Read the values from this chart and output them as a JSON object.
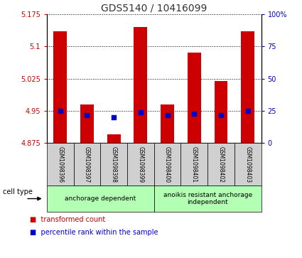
{
  "title": "GDS5140 / 10416099",
  "samples": [
    "GSM1098396",
    "GSM1098397",
    "GSM1098398",
    "GSM1098399",
    "GSM1098400",
    "GSM1098401",
    "GSM1098402",
    "GSM1098403"
  ],
  "transformed_counts": [
    5.135,
    4.965,
    4.895,
    5.145,
    4.965,
    5.085,
    5.02,
    5.135
  ],
  "percentile_ranks": [
    25,
    22,
    20,
    24,
    22,
    23,
    22,
    25
  ],
  "ylim_left": [
    4.875,
    5.175
  ],
  "ylim_right": [
    0,
    100
  ],
  "yticks_left": [
    4.875,
    4.95,
    5.025,
    5.1,
    5.175
  ],
  "yticks_right": [
    0,
    25,
    50,
    75,
    100
  ],
  "ytick_labels_left": [
    "4.875",
    "4.95",
    "5.025",
    "5.1",
    "5.175"
  ],
  "ytick_labels_right": [
    "0",
    "25",
    "50",
    "75",
    "100%"
  ],
  "bar_color": "#cc0000",
  "dot_color": "#0000cc",
  "bar_bottom": 4.875,
  "groups": [
    {
      "label": "anchorage dependent",
      "n_samples": 4,
      "color": "#b3ffb3"
    },
    {
      "label": "anoikis resistant anchorage\nindependent",
      "n_samples": 4,
      "color": "#b3ffb3"
    }
  ],
  "legend_entries": [
    {
      "color": "#cc0000",
      "label": "transformed count"
    },
    {
      "color": "#0000cc",
      "label": "percentile rank within the sample"
    }
  ],
  "cell_type_label": "cell type",
  "bar_width": 0.5,
  "dot_size": 18,
  "ylabel_left_color": "#cc0000",
  "ylabel_right_color": "#0000cc",
  "title_color": "#333333",
  "title_fontsize": 10
}
